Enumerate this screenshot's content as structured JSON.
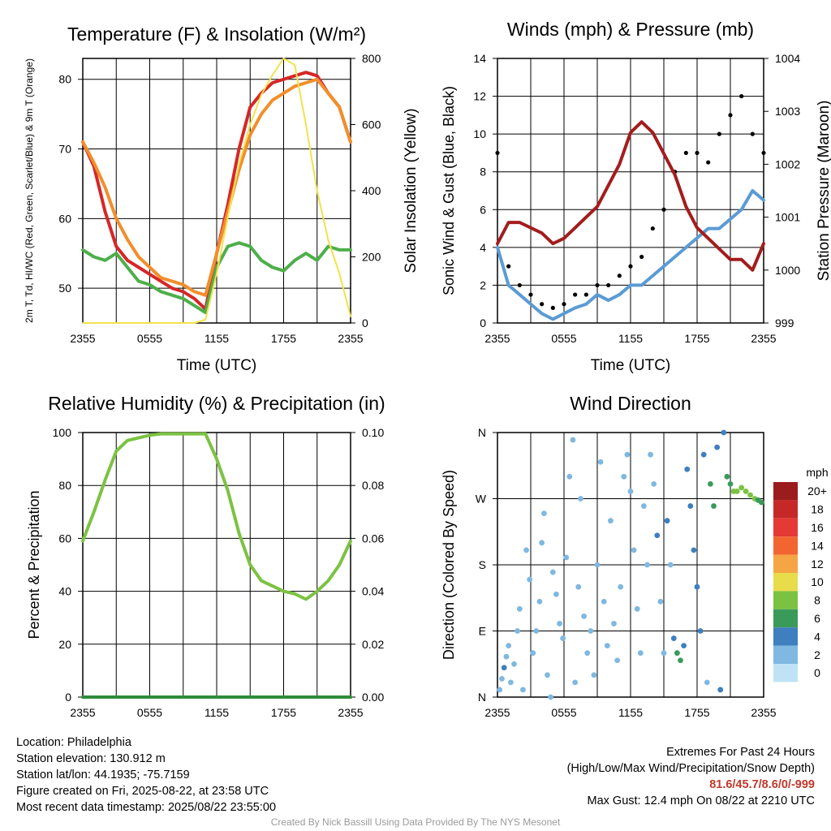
{
  "chart_data": [
    {
      "type": "line",
      "title": "Temperature (F) & Insolation (W/m²)",
      "xlabel": "Time (UTC)",
      "ylabel": "2m T, Td, HI/WC (Red, Green, Scarlet/Blue) & 9m T (Orange)",
      "ylabel_right": "Solar Insolation (Yellow)",
      "x_ticks": [
        "2355",
        "0555",
        "1155",
        "1755",
        "2355"
      ],
      "ylim": [
        45,
        83
      ],
      "y_ticks": [
        50,
        60,
        70,
        80
      ],
      "ylim_right": [
        0,
        800
      ],
      "y_ticks_right": [
        0,
        200,
        400,
        600,
        800
      ],
      "x_hours": [
        0,
        1,
        2,
        3,
        4,
        5,
        6,
        7,
        8,
        9,
        10,
        11,
        12,
        13,
        14,
        15,
        16,
        17,
        18,
        19,
        20,
        21,
        22,
        23,
        24
      ],
      "series": [
        {
          "color": "#d62728",
          "axis": "left",
          "values": [
            71,
            67.5,
            61,
            56,
            54,
            53,
            52,
            51,
            50,
            49.5,
            48.5,
            47,
            55,
            62,
            70,
            76,
            78,
            79.5,
            80,
            80.5,
            81,
            80.5,
            78,
            76,
            71
          ]
        },
        {
          "color": "#f28e2b",
          "axis": "left",
          "values": [
            71,
            68,
            64.5,
            60,
            57,
            54.5,
            53,
            51.5,
            51,
            50.5,
            49.5,
            49,
            55,
            61,
            67,
            72,
            75,
            77,
            78,
            79,
            79.5,
            80,
            78,
            76,
            71
          ]
        },
        {
          "color": "#4daf4a",
          "axis": "left",
          "values": [
            55.5,
            54.5,
            54,
            55,
            53,
            51,
            50.5,
            49.5,
            49,
            48.5,
            47.5,
            46.5,
            53,
            56,
            56.5,
            56,
            54,
            53,
            52.5,
            54,
            55,
            54,
            56,
            55.5,
            55.5
          ]
        },
        {
          "color": "#f2e24b",
          "axis": "right",
          "values": [
            0,
            0,
            0,
            0,
            0,
            0,
            0,
            0,
            0,
            0,
            0,
            10,
            150,
            320,
            480,
            600,
            690,
            750,
            800,
            780,
            600,
            400,
            250,
            150,
            20
          ]
        }
      ]
    },
    {
      "type": "line",
      "title": "Winds (mph) & Pressure (mb)",
      "xlabel": "Time (UTC)",
      "ylabel": "Sonic Wind & Gust (Blue, Black)",
      "ylabel_right": "Station Pressure (Maroon)",
      "x_ticks": [
        "2355",
        "0555",
        "1155",
        "1755",
        "2355"
      ],
      "ylim": [
        0,
        14
      ],
      "y_ticks": [
        0,
        2,
        4,
        6,
        8,
        10,
        12,
        14
      ],
      "ylim_right": [
        999,
        1004
      ],
      "y_ticks_right": [
        999,
        1000,
        1001,
        1002,
        1003,
        1004
      ],
      "x_hours": [
        0,
        1,
        2,
        3,
        4,
        5,
        6,
        7,
        8,
        9,
        10,
        11,
        12,
        13,
        14,
        15,
        16,
        17,
        18,
        19,
        20,
        21,
        22,
        23,
        24
      ],
      "series": [
        {
          "color": "#5b9bd5",
          "axis": "left",
          "values": [
            4,
            2,
            1.5,
            1,
            0.5,
            0.2,
            0.5,
            0.8,
            1,
            1.5,
            1.2,
            1.5,
            2,
            2,
            2.5,
            3,
            3.5,
            4,
            4.5,
            5,
            5,
            5.5,
            6,
            7,
            6.5
          ]
        },
        {
          "color": "#000000",
          "axis": "left",
          "dots": true,
          "values": [
            9,
            3,
            2,
            1.5,
            1,
            0.8,
            1,
            1.5,
            1.5,
            2,
            2,
            2.5,
            3,
            3.5,
            5,
            6,
            8,
            9,
            9,
            8.5,
            10,
            11,
            12,
            10,
            9
          ]
        },
        {
          "color": "#a31d1d",
          "axis": "right",
          "values": [
            1000.5,
            1000.9,
            1000.9,
            1000.8,
            1000.7,
            1000.5,
            1000.6,
            1000.8,
            1001.0,
            1001.2,
            1001.6,
            1002.0,
            1002.6,
            1002.8,
            1002.6,
            1002.2,
            1001.8,
            1001.2,
            1000.8,
            1000.6,
            1000.4,
            1000.2,
            1000.2,
            1000.0,
            1000.5
          ]
        }
      ]
    },
    {
      "type": "line",
      "title": "Relative Humidity (%) & Precipitation (in)",
      "ylabel": "Percent & Precipitation",
      "x_ticks": [
        "2355",
        "0555",
        "1155",
        "1755",
        "2355"
      ],
      "ylim": [
        0,
        100
      ],
      "y_ticks": [
        0,
        20,
        40,
        60,
        80,
        100
      ],
      "ylim_right": [
        0,
        0.1
      ],
      "y_ticks_right": [
        "0.00",
        "0.02",
        "0.04",
        "0.06",
        "0.08",
        "0.10"
      ],
      "x_hours": [
        0,
        1,
        2,
        3,
        4,
        5,
        6,
        7,
        8,
        9,
        10,
        11,
        12,
        13,
        14,
        15,
        16,
        17,
        18,
        19,
        20,
        21,
        22,
        23,
        24
      ],
      "series": [
        {
          "color": "#7cc242",
          "axis": "left",
          "values": [
            59,
            70,
            82,
            93,
            97,
            98,
            99,
            99.5,
            99.5,
            99.5,
            99.5,
            99.5,
            90,
            78,
            62,
            50,
            44,
            42,
            40,
            39,
            37,
            40,
            44,
            50,
            59
          ]
        },
        {
          "color": "#2e8b3a",
          "axis": "right",
          "values": [
            0,
            0,
            0,
            0,
            0,
            0,
            0,
            0,
            0,
            0,
            0,
            0,
            0,
            0,
            0,
            0,
            0,
            0,
            0,
            0,
            0,
            0,
            0,
            0,
            0
          ]
        }
      ]
    },
    {
      "type": "scatter",
      "title": "Wind Direction",
      "ylabel": "Direction (Colored By Speed)",
      "x_ticks": [
        "2355",
        "0555",
        "1155",
        "1755",
        "2355"
      ],
      "y_ticks": [
        "N",
        "E",
        "S",
        "W",
        "N"
      ],
      "legend": {
        "unit": "mph",
        "labels": [
          "20+",
          "18",
          "16",
          "14",
          "12",
          "10",
          "8",
          "6",
          "4",
          "2",
          "0"
        ],
        "colors": [
          "#9b1c1c",
          "#c62828",
          "#e53935",
          "#f26530",
          "#f6a545",
          "#e8dc4a",
          "#7cc242",
          "#3a9a5a",
          "#3f7fbf",
          "#7fb8e0",
          "#bfe3f5"
        ]
      },
      "points": [
        [
          0.2,
          10,
          2
        ],
        [
          0.4,
          25,
          2
        ],
        [
          0.6,
          40,
          3
        ],
        [
          0.8,
          55,
          2
        ],
        [
          1.0,
          70,
          2
        ],
        [
          1.2,
          20,
          1
        ],
        [
          1.5,
          45,
          2
        ],
        [
          1.8,
          90,
          1
        ],
        [
          2.0,
          120,
          1
        ],
        [
          2.3,
          10,
          1
        ],
        [
          2.6,
          200,
          1
        ],
        [
          2.9,
          160,
          1
        ],
        [
          3.2,
          60,
          1
        ],
        [
          3.5,
          90,
          1
        ],
        [
          3.8,
          130,
          1
        ],
        [
          4.0,
          210,
          1
        ],
        [
          4.2,
          250,
          1
        ],
        [
          4.5,
          30,
          1
        ],
        [
          4.8,
          0,
          1
        ],
        [
          5.0,
          170,
          1
        ],
        [
          5.3,
          140,
          1
        ],
        [
          5.6,
          100,
          1
        ],
        [
          5.9,
          80,
          1
        ],
        [
          6.2,
          190,
          1
        ],
        [
          6.5,
          300,
          1
        ],
        [
          6.8,
          350,
          1
        ],
        [
          7.0,
          20,
          1
        ],
        [
          7.3,
          150,
          1
        ],
        [
          7.5,
          270,
          1
        ],
        [
          7.8,
          110,
          1
        ],
        [
          8.1,
          60,
          1
        ],
        [
          8.4,
          90,
          1
        ],
        [
          8.7,
          30,
          1
        ],
        [
          9.0,
          180,
          1
        ],
        [
          9.3,
          320,
          1
        ],
        [
          9.6,
          130,
          1
        ],
        [
          9.9,
          70,
          1
        ],
        [
          10.2,
          240,
          1
        ],
        [
          10.5,
          100,
          1
        ],
        [
          10.8,
          50,
          1
        ],
        [
          11.1,
          150,
          1
        ],
        [
          11.4,
          300,
          1
        ],
        [
          11.7,
          330,
          1
        ],
        [
          12.0,
          280,
          1
        ],
        [
          12.3,
          200,
          1
        ],
        [
          12.6,
          120,
          1
        ],
        [
          12.9,
          60,
          2
        ],
        [
          13.2,
          260,
          2
        ],
        [
          13.5,
          180,
          2
        ],
        [
          13.8,
          330,
          2
        ],
        [
          14.1,
          290,
          2
        ],
        [
          14.4,
          220,
          3
        ],
        [
          14.7,
          130,
          2
        ],
        [
          15.0,
          60,
          2
        ],
        [
          15.3,
          240,
          3
        ],
        [
          15.6,
          180,
          2
        ],
        [
          15.9,
          80,
          3
        ],
        [
          16.2,
          60,
          5
        ],
        [
          16.5,
          50,
          6
        ],
        [
          16.8,
          70,
          4
        ],
        [
          17.1,
          310,
          4
        ],
        [
          17.4,
          260,
          3
        ],
        [
          17.7,
          200,
          3
        ],
        [
          18.0,
          150,
          4
        ],
        [
          18.3,
          90,
          3
        ],
        [
          18.6,
          330,
          3
        ],
        [
          18.9,
          20,
          2
        ],
        [
          19.2,
          290,
          5
        ],
        [
          19.5,
          260,
          6
        ],
        [
          19.8,
          340,
          4
        ],
        [
          20.1,
          10,
          3
        ],
        [
          20.4,
          360,
          4
        ],
        [
          20.7,
          300,
          6
        ],
        [
          21.0,
          290,
          5
        ],
        [
          21.3,
          280,
          7
        ],
        [
          21.6,
          280,
          8
        ],
        [
          22.0,
          285,
          8
        ],
        [
          22.4,
          280,
          8
        ],
        [
          22.8,
          275,
          7
        ],
        [
          23.2,
          270,
          7
        ],
        [
          23.5,
          268,
          6
        ],
        [
          23.8,
          265,
          6
        ]
      ]
    }
  ],
  "footer": {
    "location": "Location: Philadelphia",
    "elevation": "Station elevation: 130.912 m",
    "latlon": "Station lat/lon: 44.1935; -75.7159",
    "created": "Figure created on Fri, 2025-08-22, at 23:58 UTC",
    "recent": "Most recent data timestamp: 2025/08/22 23:55:00",
    "extremes_title": "Extremes For Past 24 Hours",
    "extremes_sub": "(High/Low/Max Wind/Precipitation/Snow Depth)",
    "extremes_values": "81.6/45.7/8.6/0/-999",
    "max_gust": "Max Gust: 12.4 mph On 08/22 at 2210 UTC",
    "credit": "Created By Nick Bassill Using Data Provided By The NYS Mesonet"
  }
}
